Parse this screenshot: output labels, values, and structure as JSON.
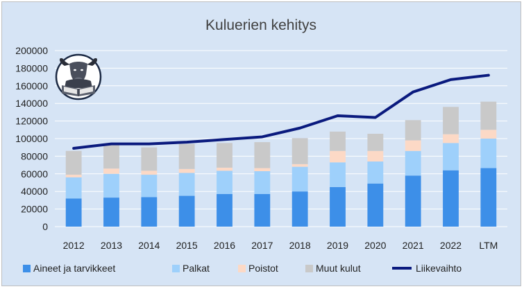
{
  "chart_data": {
    "type": "bar",
    "stacked": true,
    "title": "Kuluerien kehitys",
    "xlabel": "",
    "ylabel": "",
    "ylim": [
      0,
      200000
    ],
    "yticks": [
      "0",
      "20000",
      "40000",
      "60000",
      "80000",
      "100000",
      "120000",
      "140000",
      "160000",
      "180000",
      "200000"
    ],
    "grid": true,
    "legend_position": "bottom",
    "categories": [
      "2012",
      "2013",
      "2014",
      "2015",
      "2016",
      "2017",
      "2018",
      "2019",
      "2020",
      "2021",
      "2022",
      "LTM"
    ],
    "series": [
      {
        "name": "Aineet ja tarvikkeet",
        "type": "bar",
        "color": "#3d8fe8",
        "values": [
          32000,
          33000,
          33500,
          35000,
          37000,
          37000,
          40000,
          45000,
          49000,
          58000,
          64000,
          66500
        ]
      },
      {
        "name": "Palkat",
        "type": "bar",
        "color": "#9ed0fb",
        "values": [
          24000,
          27000,
          25500,
          26000,
          26500,
          26000,
          28000,
          28000,
          25000,
          28000,
          31000,
          33500
        ]
      },
      {
        "name": "Poistot",
        "type": "bar",
        "color": "#fcd9c6",
        "values": [
          3000,
          6000,
          4500,
          4500,
          3500,
          3500,
          3000,
          13000,
          12000,
          12000,
          10000,
          10000
        ]
      },
      {
        "name": "Muut kulut",
        "type": "bar",
        "color": "#c9c9c9",
        "values": [
          27000,
          28000,
          26500,
          28500,
          28000,
          29500,
          29500,
          22000,
          19500,
          23000,
          31000,
          32000
        ]
      },
      {
        "name": "Liikevaihto",
        "type": "line",
        "color": "#0a1a7e",
        "values": [
          89000,
          94000,
          94000,
          96000,
          99000,
          102000,
          112000,
          126000,
          124000,
          153000,
          167000,
          172000
        ]
      }
    ]
  },
  "logo": {
    "name": "bull-reading-book-logo",
    "colors": {
      "ring": "#1c2a44",
      "background": "#ffffff"
    }
  }
}
